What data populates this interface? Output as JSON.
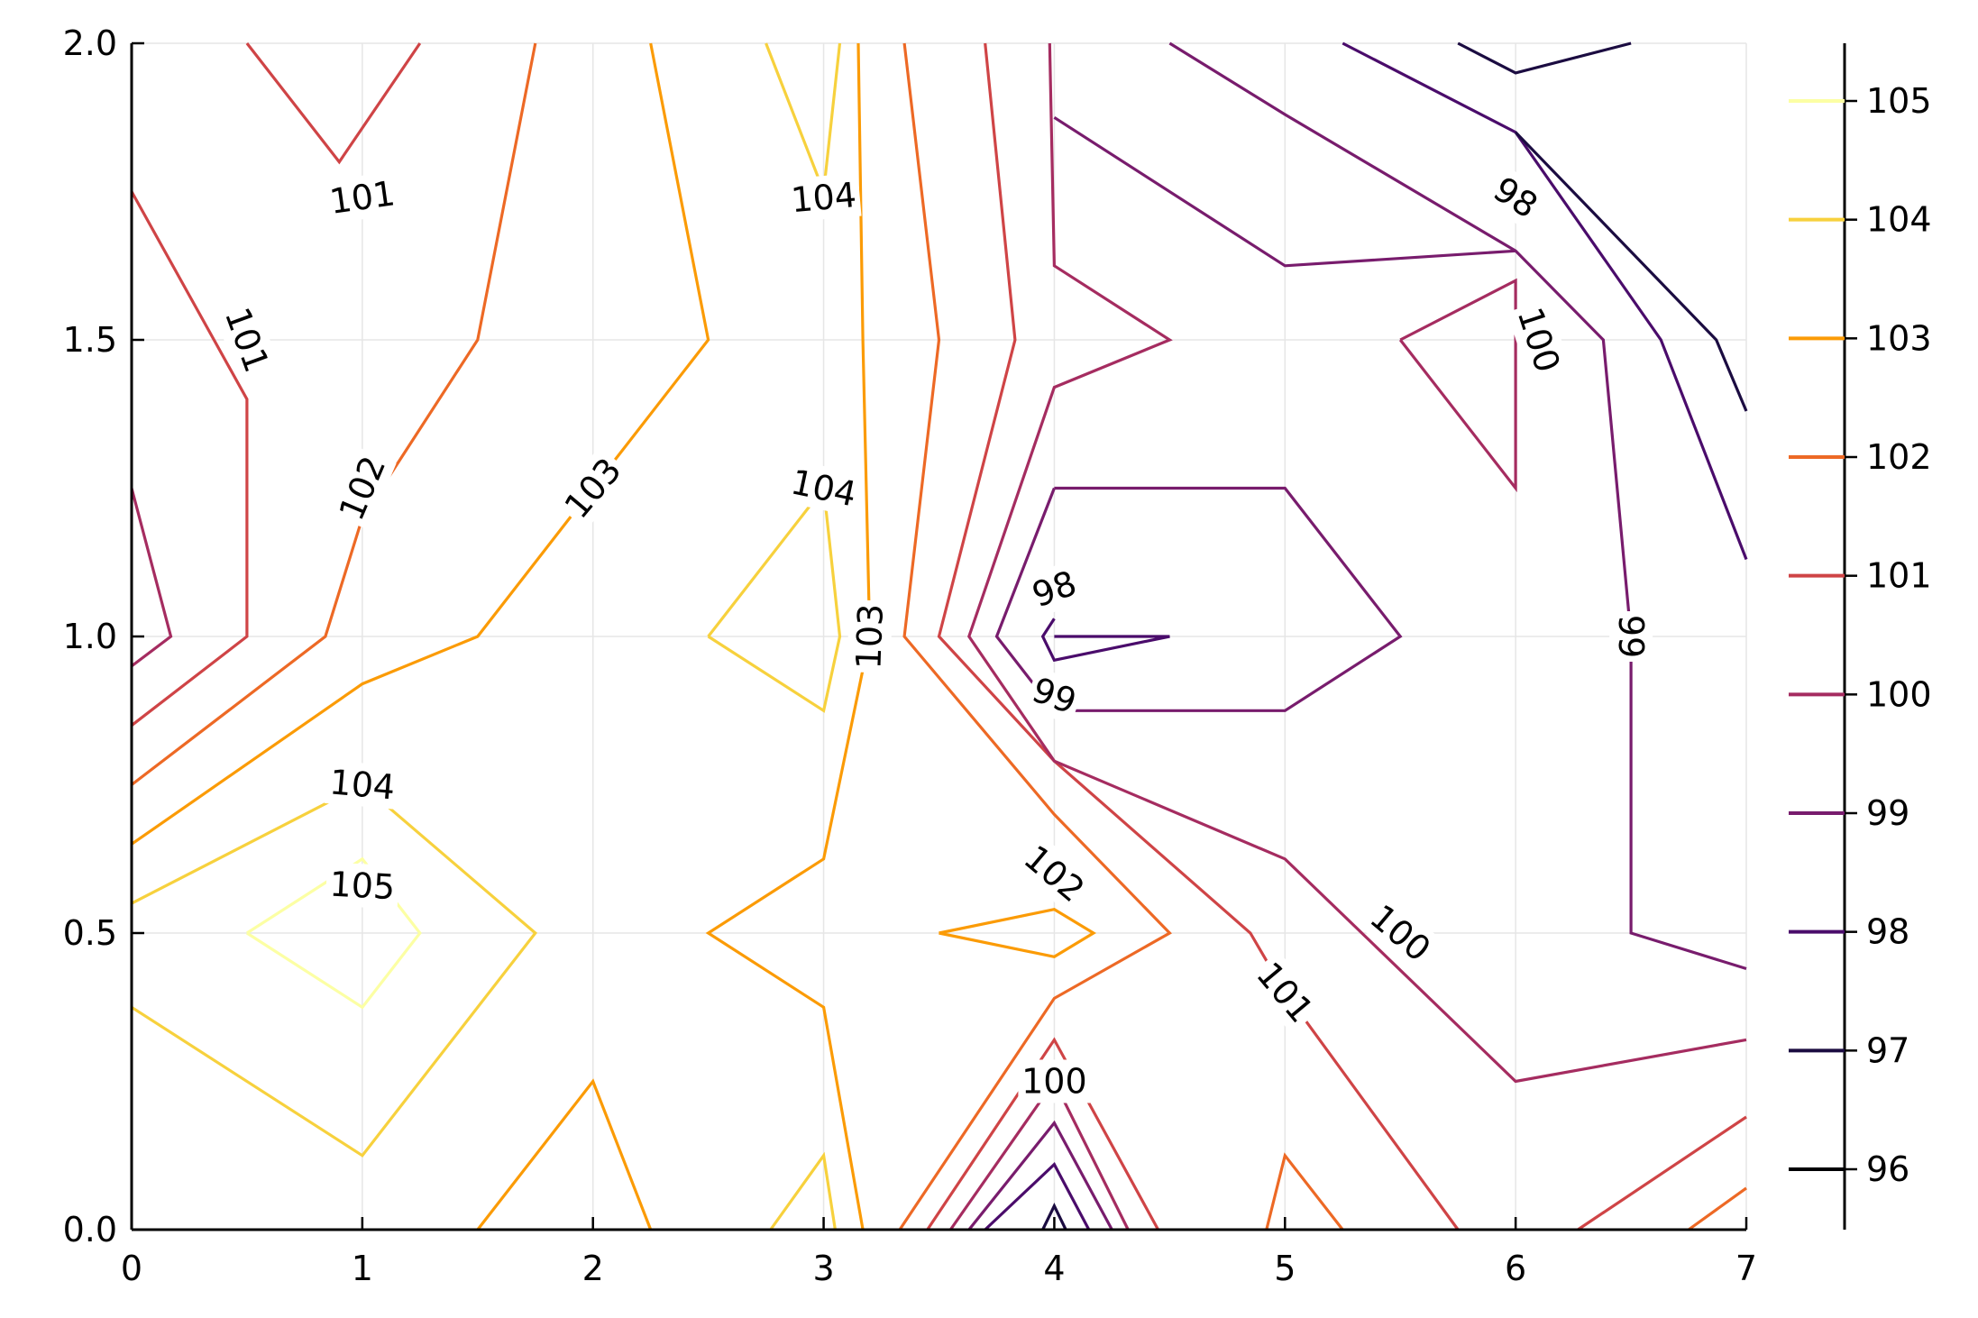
{
  "chart_data": {
    "type": "contour",
    "title": "",
    "xlabel": "",
    "ylabel": "",
    "xlim": [
      0,
      7
    ],
    "ylim": [
      0,
      2
    ],
    "grid": true,
    "x_ticks": [
      "0",
      "1",
      "2",
      "3",
      "4",
      "5",
      "6",
      "7"
    ],
    "y_ticks": [
      "0.0",
      "0.5",
      "1.0",
      "1.5",
      "2.0"
    ],
    "colorbar": {
      "placement": "right",
      "levels": [
        96,
        97,
        98,
        99,
        100,
        101,
        102,
        103,
        104,
        105
      ]
    },
    "level_colors": {
      "96": "#000004",
      "97": "#1b0c41",
      "98": "#4a0c6b",
      "99": "#781c6d",
      "100": "#a52c60",
      "101": "#cf4446",
      "102": "#ed6925",
      "103": "#fb9b06",
      "104": "#f7d13d",
      "105": "#fcffa4"
    },
    "contours": [
      {
        "level": 105,
        "points": [
          [
            0.5,
            0.5
          ],
          [
            1,
            0.625
          ],
          [
            1.25,
            0.5
          ],
          [
            1,
            0.375
          ],
          [
            0.5,
            0.5
          ]
        ]
      },
      {
        "level": 104,
        "points": [
          [
            0,
            0.55
          ],
          [
            1,
            0.75
          ],
          [
            1.75,
            0.5
          ],
          [
            1,
            0.125
          ],
          [
            0,
            0.375
          ]
        ]
      },
      {
        "level": 104,
        "points": [
          [
            2.75,
            2.0
          ],
          [
            3.0,
            1.75
          ],
          [
            3.07,
            2.0
          ]
        ]
      },
      {
        "level": 104,
        "points": [
          [
            2.5,
            1.0
          ],
          [
            3.0,
            1.25
          ],
          [
            3.07,
            1.0
          ],
          [
            3.0,
            0.875
          ],
          [
            2.5,
            1.0
          ]
        ]
      },
      {
        "level": 104,
        "points": [
          [
            2.77,
            0.0
          ],
          [
            3.0,
            0.125
          ],
          [
            3.05,
            0.0
          ]
        ]
      },
      {
        "level": 103,
        "points": [
          [
            0,
            0.65
          ],
          [
            1,
            0.92
          ],
          [
            1.5,
            1.0
          ],
          [
            2.5,
            1.5
          ],
          [
            2.25,
            2.0
          ]
        ]
      },
      {
        "level": 103,
        "points": [
          [
            1.5,
            0.0
          ],
          [
            2.0,
            0.25
          ],
          [
            2.25,
            0.0
          ]
        ]
      },
      {
        "level": 103,
        "points": [
          [
            3.15,
            2.0
          ],
          [
            3.17,
            1.5
          ],
          [
            3.2,
            1.0
          ],
          [
            3.0,
            0.625
          ],
          [
            2.5,
            0.5
          ],
          [
            3.0,
            0.375
          ],
          [
            3.17,
            0.0
          ]
        ]
      },
      {
        "level": 103,
        "points": [
          [
            3.5,
            0.5
          ],
          [
            4.0,
            0.54
          ],
          [
            4.17,
            0.5
          ],
          [
            4.0,
            0.46
          ],
          [
            3.5,
            0.5
          ]
        ]
      },
      {
        "level": 102,
        "points": [
          [
            0,
            0.75
          ],
          [
            0.84,
            1.0
          ],
          [
            1.0,
            1.2
          ],
          [
            1.5,
            1.5
          ],
          [
            1.75,
            2.0
          ]
        ]
      },
      {
        "level": 102,
        "points": [
          [
            3.35,
            2.0
          ],
          [
            3.5,
            1.5
          ],
          [
            3.35,
            1.0
          ],
          [
            4.0,
            0.7
          ],
          [
            4.5,
            0.5
          ],
          [
            4.0,
            0.39
          ],
          [
            3.33,
            0.0
          ]
        ]
      },
      {
        "level": 102,
        "points": [
          [
            4.92,
            0.0
          ],
          [
            5.0,
            0.125
          ],
          [
            5.25,
            0.0
          ]
        ]
      },
      {
        "level": 102,
        "points": [
          [
            6.75,
            0.0
          ],
          [
            7.0,
            0.07
          ]
        ]
      },
      {
        "level": 101,
        "points": [
          [
            0.5,
            2.0
          ],
          [
            0.9,
            1.8
          ],
          [
            1.25,
            2.0
          ]
        ]
      },
      {
        "level": 101,
        "points": [
          [
            0,
            1.75
          ],
          [
            0.5,
            1.4
          ],
          [
            0.5,
            1.0
          ],
          [
            0,
            0.85
          ]
        ]
      },
      {
        "level": 101,
        "points": [
          [
            3.7,
            2.0
          ],
          [
            3.83,
            1.5
          ],
          [
            3.5,
            1.0
          ],
          [
            4.0,
            0.79
          ],
          [
            4.85,
            0.5
          ],
          [
            5.0,
            0.4
          ],
          [
            5.75,
            0.0
          ]
        ]
      },
      {
        "level": 101,
        "points": [
          [
            6.27,
            0.0
          ],
          [
            7.0,
            0.19
          ]
        ]
      },
      {
        "level": 101,
        "points": [
          [
            3.45,
            0.0
          ],
          [
            4.0,
            0.32
          ],
          [
            4.45,
            0.0
          ]
        ]
      },
      {
        "level": 100,
        "points": [
          [
            0,
            1.25
          ],
          [
            0.17,
            1.0
          ],
          [
            0,
            0.95
          ]
        ]
      },
      {
        "level": 100,
        "points": [
          [
            3.98,
            2.0
          ],
          [
            4.0,
            1.625
          ],
          [
            4.5,
            1.5
          ],
          [
            4.0,
            1.42
          ],
          [
            3.63,
            1.0
          ],
          [
            4.0,
            0.79
          ],
          [
            5.0,
            0.625
          ],
          [
            6.0,
            0.25
          ],
          [
            7.0,
            0.32
          ]
        ]
      },
      {
        "level": 100,
        "points": [
          [
            5.5,
            1.5
          ],
          [
            6.0,
            1.6
          ],
          [
            6.0,
            1.25
          ],
          [
            5.5,
            1.5
          ]
        ]
      },
      {
        "level": 100,
        "points": [
          [
            3.55,
            0.0
          ],
          [
            4.0,
            0.25
          ],
          [
            4.32,
            0.0
          ]
        ]
      },
      {
        "level": 99,
        "points": [
          [
            4.5,
            2.0
          ],
          [
            5.0,
            1.88
          ],
          [
            6.0,
            1.65
          ],
          [
            6.38,
            1.5
          ],
          [
            6.5,
            1.0
          ],
          [
            6.5,
            0.5
          ],
          [
            7.0,
            0.44
          ]
        ]
      },
      {
        "level": 99,
        "points": [
          [
            4.0,
            1.875
          ],
          [
            5.0,
            1.625
          ],
          [
            6.0,
            1.65
          ]
        ]
      },
      {
        "level": 99,
        "points": [
          [
            4.0,
            1.25
          ],
          [
            5.0,
            1.25
          ],
          [
            5.5,
            1.0
          ],
          [
            5.0,
            0.875
          ],
          [
            4.0,
            0.875
          ],
          [
            3.75,
            1.0
          ],
          [
            4.0,
            1.25
          ]
        ]
      },
      {
        "level": 99,
        "points": [
          [
            3.63,
            0.0
          ],
          [
            4.0,
            0.18
          ],
          [
            4.25,
            0.0
          ]
        ]
      },
      {
        "level": 98,
        "points": [
          [
            5.25,
            2.0
          ],
          [
            6.0,
            1.85
          ],
          [
            6.63,
            1.5
          ],
          [
            7.0,
            1.13
          ]
        ]
      },
      {
        "level": 98,
        "points": [
          [
            4.0,
            1.0
          ],
          [
            4.5,
            1.0
          ],
          [
            4.0,
            0.96
          ],
          [
            3.95,
            1.0
          ],
          [
            4.0,
            1.03
          ]
        ]
      },
      {
        "level": 98,
        "points": [
          [
            3.7,
            0.0
          ],
          [
            4.0,
            0.11
          ],
          [
            4.15,
            0.0
          ]
        ]
      },
      {
        "level": 97,
        "points": [
          [
            5.75,
            2.0
          ],
          [
            6.0,
            1.95
          ],
          [
            6.5,
            2.0
          ]
        ]
      },
      {
        "level": 97,
        "points": [
          [
            6.0,
            1.85
          ],
          [
            6.87,
            1.5
          ],
          [
            7.0,
            1.38
          ]
        ]
      },
      {
        "level": 97,
        "points": [
          [
            3.95,
            0.0
          ],
          [
            4.0,
            0.04
          ],
          [
            4.05,
            0.0
          ]
        ]
      }
    ],
    "inline_labels": [
      {
        "text": "101",
        "x": 1.0,
        "y": 1.74,
        "angle": -8
      },
      {
        "text": "104",
        "x": 3.0,
        "y": 1.74,
        "angle": -5
      },
      {
        "text": "101",
        "x": 0.5,
        "y": 1.5,
        "angle": 70
      },
      {
        "text": "98",
        "x": 6.0,
        "y": 1.74,
        "angle": 33
      },
      {
        "text": "100",
        "x": 6.1,
        "y": 1.5,
        "angle": 72
      },
      {
        "text": "102",
        "x": 1.0,
        "y": 1.25,
        "angle": -67
      },
      {
        "text": "103",
        "x": 2.0,
        "y": 1.25,
        "angle": -50
      },
      {
        "text": "104",
        "x": 3.0,
        "y": 1.25,
        "angle": 12
      },
      {
        "text": "98",
        "x": 4.0,
        "y": 1.08,
        "angle": -20
      },
      {
        "text": "103",
        "x": 3.2,
        "y": 1.0,
        "angle": -88
      },
      {
        "text": "99",
        "x": 6.5,
        "y": 1.0,
        "angle": 90
      },
      {
        "text": "99",
        "x": 4.0,
        "y": 0.9,
        "angle": 20
      },
      {
        "text": "104",
        "x": 1.0,
        "y": 0.75,
        "angle": 5
      },
      {
        "text": "105",
        "x": 1.0,
        "y": 0.58,
        "angle": 3
      },
      {
        "text": "102",
        "x": 4.0,
        "y": 0.6,
        "angle": 40
      },
      {
        "text": "100",
        "x": 5.5,
        "y": 0.5,
        "angle": 40
      },
      {
        "text": "101",
        "x": 5.0,
        "y": 0.4,
        "angle": 50
      },
      {
        "text": "100",
        "x": 4.0,
        "y": 0.25,
        "angle": 0
      }
    ]
  }
}
